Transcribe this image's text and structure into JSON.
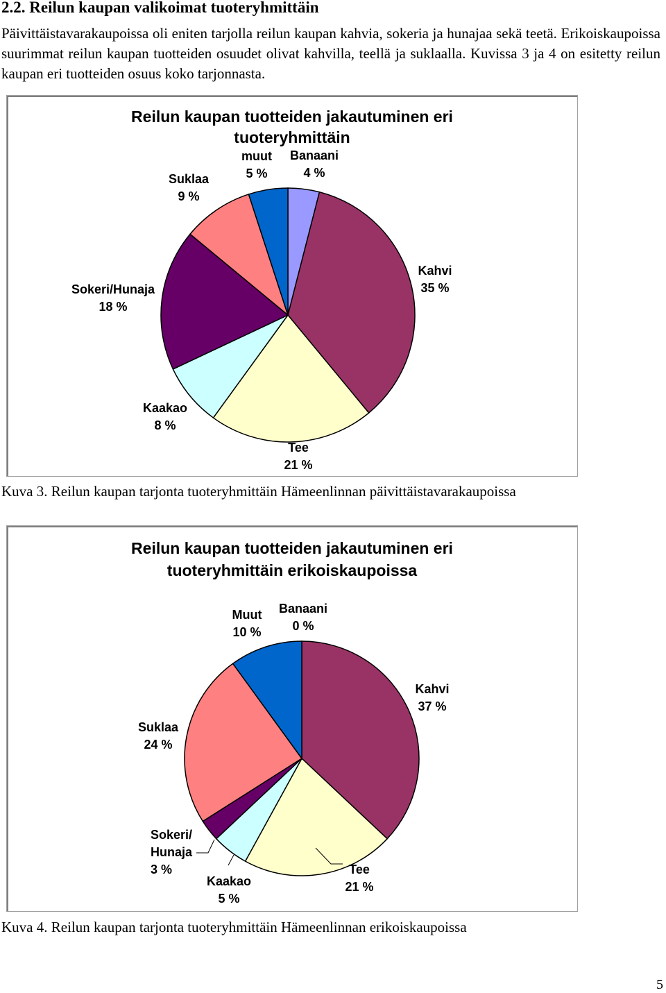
{
  "heading": "2.2. Reilun kaupan valikoimat tuoteryhmittäin",
  "paragraph": "Päivittäistavarakaupoissa oli eniten tarjolla reilun kaupan kahvia, sokeria ja hunajaa sekä teetä. Erikoiskaupoissa suurimmat reilun kaupan tuotteiden osuudet olivat kahvilla, teellä ja suklaalla. Kuvissa 3 ja 4 on esitetty reilun kaupan eri tuotteiden osuus koko tarjonnasta.",
  "caption1": "Kuva 3. Reilun kaupan tarjonta tuoteryhmittäin Hämeenlinnan päivittäistavarakaupoissa",
  "caption2": "Kuva 4. Reilun kaupan tarjonta tuoteryhmittäin Hämeenlinnan erikoiskaupoissa",
  "page_number": "5",
  "chart_data": [
    {
      "type": "pie",
      "title": [
        "Reilun kaupan tuotteiden jakautuminen eri",
        "tuoteryhmittäin"
      ],
      "slices": [
        {
          "name": "Banaani",
          "value": 4,
          "label": "4 %",
          "color": "#9999ff"
        },
        {
          "name": "Kahvi",
          "value": 35,
          "label": "35 %",
          "color": "#993366"
        },
        {
          "name": "Tee",
          "value": 21,
          "label": "21 %",
          "color": "#ffffcc"
        },
        {
          "name": "Kaakao",
          "value": 8,
          "label": "8 %",
          "color": "#ccffff"
        },
        {
          "name": "Sokeri/Hunaja",
          "value": 18,
          "label": "18 %",
          "color": "#660066"
        },
        {
          "name": "Suklaa",
          "value": 9,
          "label": "9 %",
          "color": "#ff8080"
        },
        {
          "name": "muut",
          "value": 5,
          "label": "5 %",
          "color": "#0066cc"
        }
      ]
    },
    {
      "type": "pie",
      "title": [
        "Reilun kaupan tuotteiden jakautuminen eri",
        "tuoteryhmittäin erikoiskaupoissa"
      ],
      "slices": [
        {
          "name": "Banaani",
          "value": 0,
          "label": "0 %",
          "color": "#9999ff"
        },
        {
          "name": "Kahvi",
          "value": 37,
          "label": "37 %",
          "color": "#993366"
        },
        {
          "name": "Tee",
          "value": 21,
          "label": "21 %",
          "color": "#ffffcc"
        },
        {
          "name": "Kaakao",
          "value": 5,
          "label": "5 %",
          "color": "#ccffff"
        },
        {
          "name": "Sokeri/ Hunaja",
          "value": 3,
          "label": "3 %",
          "color": "#660066"
        },
        {
          "name": "Suklaa",
          "value": 24,
          "label": "24 %",
          "color": "#ff8080"
        },
        {
          "name": "Muut",
          "value": 10,
          "label": "10 %",
          "color": "#0066cc"
        }
      ]
    }
  ]
}
